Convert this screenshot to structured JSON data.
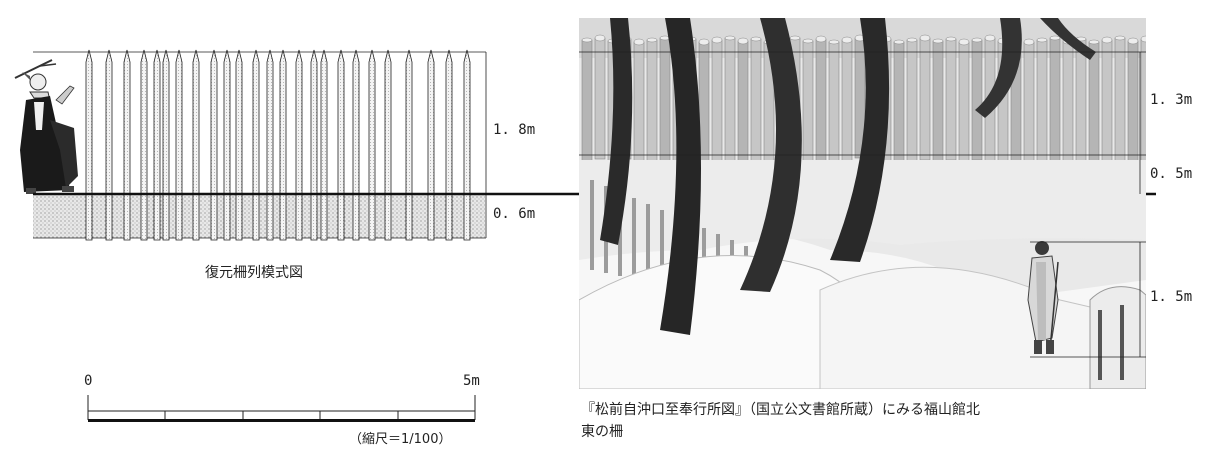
{
  "left_diagram": {
    "caption": "復元柵列模式図",
    "above_ground_label": "1. 8m",
    "below_ground_label": "0. 6m"
  },
  "scale_bar": {
    "start_label": "0",
    "end_label": "5m",
    "scale_text": "（縮尺＝1/100）"
  },
  "illustration": {
    "fence_height_label": "1. 3m",
    "lower_gap_label": "0. 5m",
    "person_height_label": "1. 5m",
    "caption_line1": "『松前自沖口至奉行所図』（国立公文書館所蔵）にみる福山館北",
    "caption_line2": "東の柵"
  },
  "colors": {
    "line": "#222222",
    "soil": "#dcdcdc",
    "snow": "#f2f2f2",
    "tree": "#2a2a2a",
    "fence": "#a9a9a9"
  }
}
